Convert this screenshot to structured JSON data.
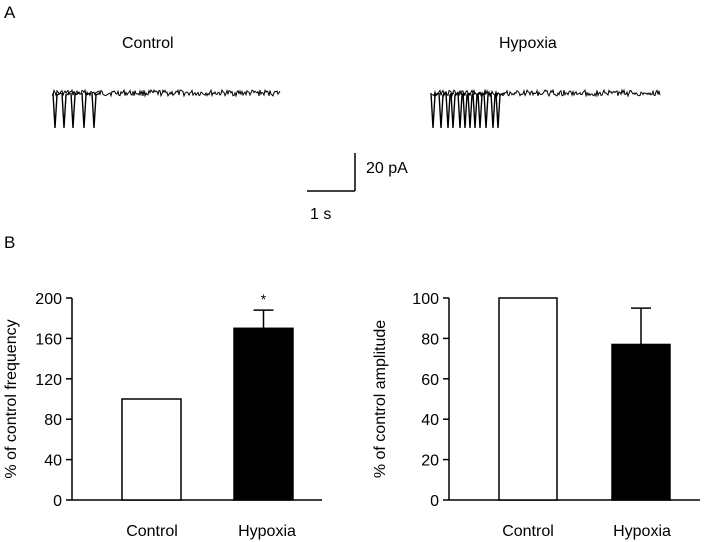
{
  "panels": {
    "a_label": "A",
    "b_label": "B"
  },
  "traces": {
    "control": {
      "label": "Control",
      "event_times_s": [
        0.07,
        0.24,
        0.44,
        0.67,
        0.88
      ]
    },
    "hypoxia": {
      "label": "Hypoxia",
      "event_times_s": [
        0.03,
        0.19,
        0.33,
        0.44,
        0.59,
        0.69,
        0.79,
        0.89,
        0.99,
        1.12,
        1.27,
        1.37
      ]
    },
    "scale_bar": {
      "current_label": "20 pA",
      "time_label": "1 s"
    }
  },
  "chart_data": [
    {
      "type": "bar",
      "categories": [
        "Control",
        "Hypoxia"
      ],
      "values": [
        100,
        170
      ],
      "errors": [
        0,
        18
      ],
      "fills": [
        "#ffffff",
        "#000000"
      ],
      "significance": [
        "",
        "*"
      ],
      "ylabel": "% of control frequency",
      "ylim": [
        0,
        200
      ],
      "yticks": [
        0,
        40,
        80,
        120,
        160,
        200
      ]
    },
    {
      "type": "bar",
      "categories": [
        "Control",
        "Hypoxia"
      ],
      "values": [
        100,
        77
      ],
      "errors": [
        0,
        18
      ],
      "fills": [
        "#ffffff",
        "#000000"
      ],
      "significance": [
        "",
        ""
      ],
      "ylabel": "% of control amplitude",
      "ylim": [
        0,
        100
      ],
      "yticks": [
        0,
        20,
        40,
        60,
        80,
        100
      ]
    }
  ]
}
